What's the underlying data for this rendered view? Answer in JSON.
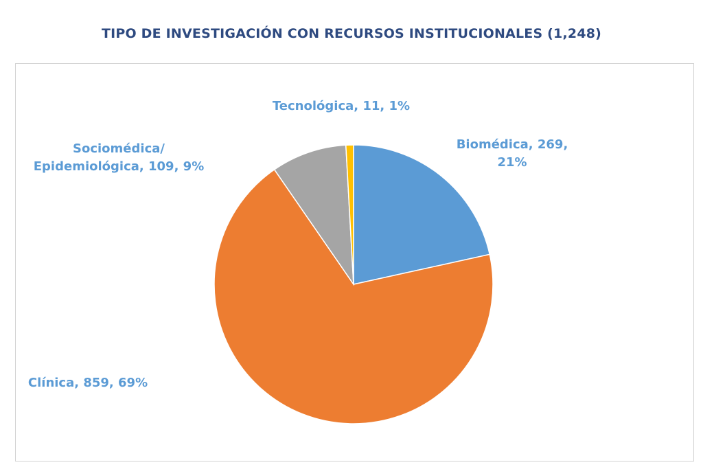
{
  "chart_data": {
    "type": "pie",
    "title": "TIPO DE INVESTIGACIÓN CON RECURSOS INSTITUCIONALES (1,248)",
    "total": 1248,
    "slices": [
      {
        "name": "Biomédica",
        "value": 269,
        "percent": "21%",
        "color": "#5b9bd5",
        "label_lines": [
          "Biomédica, 269,",
          "21%"
        ]
      },
      {
        "name": "Clínica",
        "value": 859,
        "percent": "69%",
        "color": "#ed7d31",
        "label_lines": [
          "Clínica, 859, 69%"
        ]
      },
      {
        "name": "Sociomédica/ Epidemiológica",
        "value": 109,
        "percent": "9%",
        "color": "#a5a5a5",
        "label_lines": [
          "Sociomédica/",
          "Epidemiológica, 109, 9%"
        ]
      },
      {
        "name": "Tecnológica",
        "value": 11,
        "percent": "1%",
        "color": "#ffc000",
        "label_lines": [
          "Tecnológica, 11, 1%"
        ]
      }
    ],
    "label_color": "#5b9bd5",
    "legend": "none"
  }
}
